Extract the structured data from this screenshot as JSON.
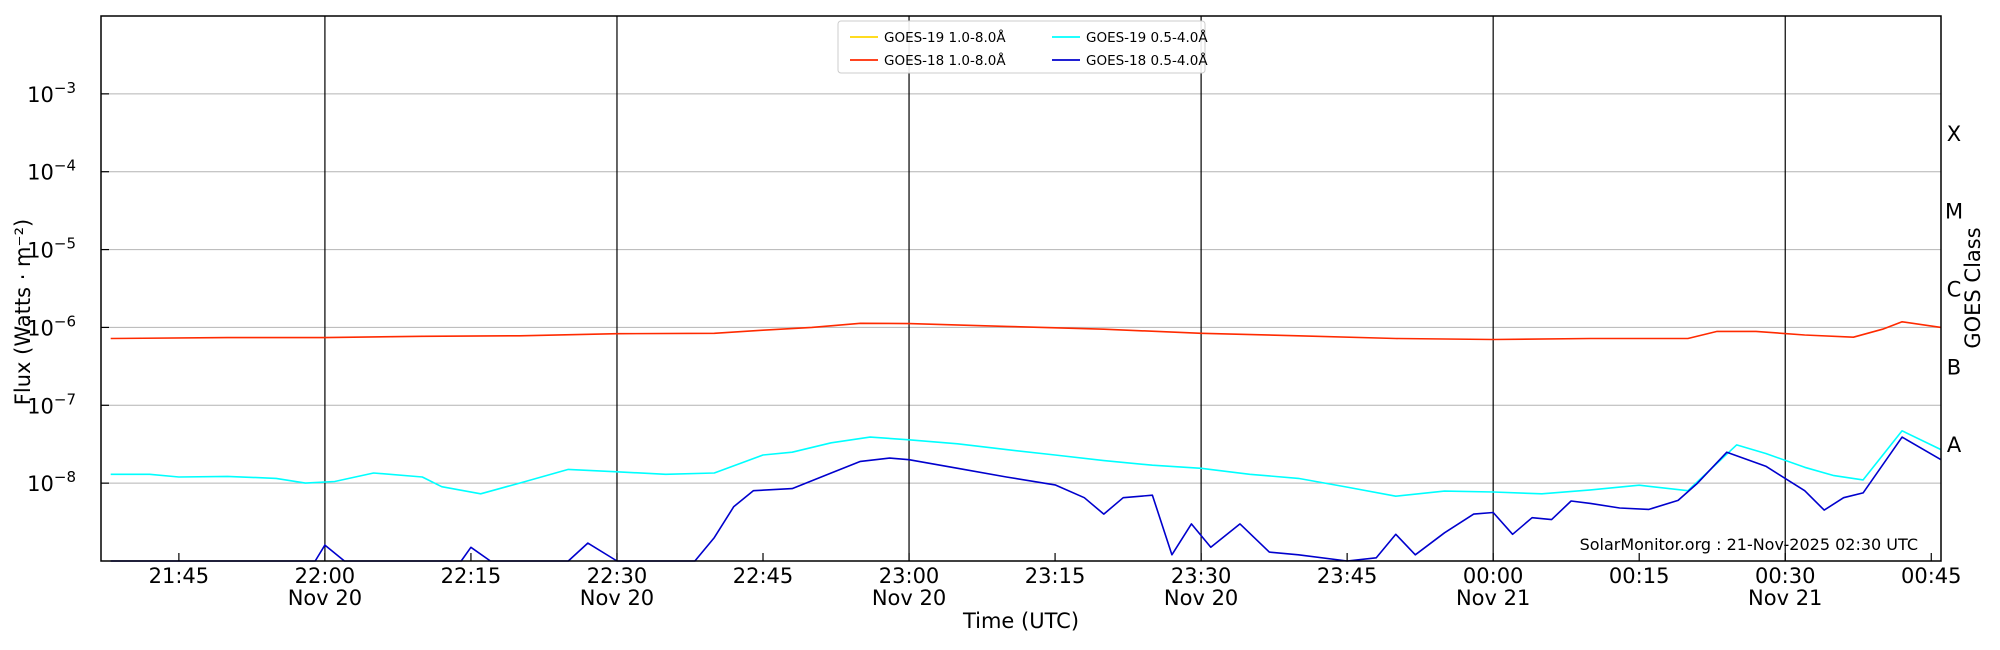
{
  "chart_data": {
    "type": "line",
    "xlabel": "Time (UTC)",
    "ylabel": "Flux (Watts · m⁻²)",
    "y2label": "GOES Class",
    "yscale": "log",
    "ylim": [
      "1.0e-9",
      "1.0e-2"
    ],
    "xlim": [
      "2025-11-20 21:37",
      "2025-11-21 00:46"
    ],
    "grid": "horizontal",
    "legend_position": "top-center",
    "credit": "SolarMonitor.org : 21-Nov-2025 02:30 UTC",
    "y_ticks": [
      {
        "value": "1e-3",
        "mant": "10",
        "exp": "−3"
      },
      {
        "value": "1e-4",
        "mant": "10",
        "exp": "−4"
      },
      {
        "value": "1e-5",
        "mant": "10",
        "exp": "−5"
      },
      {
        "value": "1e-6",
        "mant": "10",
        "exp": "−6"
      },
      {
        "value": "1e-7",
        "mant": "10",
        "exp": "−7"
      },
      {
        "value": "1e-8",
        "mant": "10",
        "exp": "−8"
      }
    ],
    "goes_classes": [
      {
        "label": "X",
        "flux": "1e-4"
      },
      {
        "label": "M",
        "flux": "1e-5"
      },
      {
        "label": "C",
        "flux": "1e-6"
      },
      {
        "label": "B",
        "flux": "1e-7"
      },
      {
        "label": "A",
        "flux": "1e-8"
      }
    ],
    "x_ticks": [
      {
        "time": "21:45",
        "date": ""
      },
      {
        "time": "22:00",
        "date": "Nov 20"
      },
      {
        "time": "22:15",
        "date": ""
      },
      {
        "time": "22:30",
        "date": "Nov 20"
      },
      {
        "time": "22:45",
        "date": ""
      },
      {
        "time": "23:00",
        "date": "Nov 20"
      },
      {
        "time": "23:15",
        "date": ""
      },
      {
        "time": "23:30",
        "date": "Nov 20"
      },
      {
        "time": "23:45",
        "date": ""
      },
      {
        "time": "00:00",
        "date": "Nov 21"
      },
      {
        "time": "00:15",
        "date": ""
      },
      {
        "time": "00:30",
        "date": "Nov 21"
      },
      {
        "time": "00:45",
        "date": ""
      }
    ],
    "vlines": [
      "22:00",
      "22:30",
      "23:00",
      "23:30",
      "00:00",
      "00:30"
    ],
    "series": [
      {
        "name": "GOES-19 1.0-8.0Å",
        "color": "#ffd700",
        "points": []
      },
      {
        "name": "GOES-19 0.5-4.0Å",
        "color": "#00ffff",
        "points": [
          [
            "21:38",
            "1.3e-8"
          ],
          [
            "21:42",
            "1.3e-8"
          ],
          [
            "21:45",
            "1.2e-8"
          ],
          [
            "21:50",
            "1.22e-8"
          ],
          [
            "21:55",
            "1.15e-8"
          ],
          [
            "21:58",
            "1.0e-8"
          ],
          [
            "22:01",
            "1.05e-8"
          ],
          [
            "22:05",
            "1.35e-8"
          ],
          [
            "22:10",
            "1.2e-8"
          ],
          [
            "22:12",
            "9.0e-9"
          ],
          [
            "22:16",
            "7.3e-9"
          ],
          [
            "22:20",
            "1.0e-8"
          ],
          [
            "22:25",
            "1.5e-8"
          ],
          [
            "22:30",
            "1.4e-8"
          ],
          [
            "22:35",
            "1.3e-8"
          ],
          [
            "22:40",
            "1.35e-8"
          ],
          [
            "22:45",
            "2.3e-8"
          ],
          [
            "22:48",
            "2.5e-8"
          ],
          [
            "22:52",
            "3.3e-8"
          ],
          [
            "22:56",
            "3.9e-8"
          ],
          [
            "23:00",
            "3.6e-8"
          ],
          [
            "23:05",
            "3.2e-8"
          ],
          [
            "23:10",
            "2.7e-8"
          ],
          [
            "23:15",
            "2.3e-8"
          ],
          [
            "23:20",
            "1.95e-8"
          ],
          [
            "23:25",
            "1.7e-8"
          ],
          [
            "23:30",
            "1.55e-8"
          ],
          [
            "23:35",
            "1.3e-8"
          ],
          [
            "23:40",
            "1.15e-8"
          ],
          [
            "23:45",
            "8.9e-9"
          ],
          [
            "23:50",
            "6.8e-9"
          ],
          [
            "23:55",
            "7.9e-9"
          ],
          [
            "00:00",
            "7.7e-9"
          ],
          [
            "00:05",
            "7.3e-9"
          ],
          [
            "00:10",
            "8.2e-9"
          ],
          [
            "00:15",
            "9.4e-9"
          ],
          [
            "00:20",
            "8.0e-9"
          ],
          [
            "00:25",
            "3.1e-8"
          ],
          [
            "00:28",
            "2.4e-8"
          ],
          [
            "00:32",
            "1.6e-8"
          ],
          [
            "00:35",
            "1.25e-8"
          ],
          [
            "00:38",
            "1.1e-8"
          ],
          [
            "00:42",
            "4.7e-8"
          ],
          [
            "00:46",
            "2.7e-8"
          ]
        ]
      },
      {
        "name": "GOES-18 1.0-8.0Å",
        "color": "#ff2a00",
        "points": [
          [
            "21:38",
            "7.2e-7"
          ],
          [
            "21:50",
            "7.4e-7"
          ],
          [
            "22:00",
            "7.4e-7"
          ],
          [
            "22:10",
            "7.7e-7"
          ],
          [
            "22:20",
            "7.8e-7"
          ],
          [
            "22:30",
            "8.3e-7"
          ],
          [
            "22:40",
            "8.4e-7"
          ],
          [
            "22:45",
            "9.2e-7"
          ],
          [
            "22:50",
            "1.0e-6"
          ],
          [
            "22:55",
            "1.13e-6"
          ],
          [
            "23:00",
            "1.12e-6"
          ],
          [
            "23:10",
            "1.03e-6"
          ],
          [
            "23:20",
            "9.5e-7"
          ],
          [
            "23:30",
            "8.4e-7"
          ],
          [
            "23:40",
            "7.8e-7"
          ],
          [
            "23:50",
            "7.2e-7"
          ],
          [
            "00:00",
            "7.0e-7"
          ],
          [
            "00:10",
            "7.2e-7"
          ],
          [
            "00:20",
            "7.2e-7"
          ],
          [
            "00:23",
            "8.9e-7"
          ],
          [
            "00:27",
            "8.9e-7"
          ],
          [
            "00:32",
            "8.0e-7"
          ],
          [
            "00:37",
            "7.5e-7"
          ],
          [
            "00:40",
            "9.5e-7"
          ],
          [
            "00:42",
            "1.18e-6"
          ],
          [
            "00:46",
            "1.0e-6"
          ]
        ]
      },
      {
        "name": "GOES-18 0.5-4.0Å",
        "color": "#0000cd",
        "points": [
          [
            "21:38",
            "1.0e-9"
          ],
          [
            "21:59",
            "1.0e-9"
          ],
          [
            "22:00",
            "1.6e-9"
          ],
          [
            "22:02",
            "1.0e-9"
          ],
          [
            "22:14",
            "1.0e-9"
          ],
          [
            "22:15",
            "1.5e-9"
          ],
          [
            "22:17",
            "1.0e-9"
          ],
          [
            "22:25",
            "1.0e-9"
          ],
          [
            "22:27",
            "1.7e-9"
          ],
          [
            "22:30",
            "1.0e-9"
          ],
          [
            "22:38",
            "1.0e-9"
          ],
          [
            "22:40",
            "2.0e-9"
          ],
          [
            "22:42",
            "5.0e-9"
          ],
          [
            "22:44",
            "8.0e-9"
          ],
          [
            "22:48",
            "8.5e-9"
          ],
          [
            "22:52",
            "1.35e-8"
          ],
          [
            "22:55",
            "1.9e-8"
          ],
          [
            "22:58",
            "2.1e-8"
          ],
          [
            "23:00",
            "2.0e-8"
          ],
          [
            "23:05",
            "1.55e-8"
          ],
          [
            "23:10",
            "1.2e-8"
          ],
          [
            "23:15",
            "9.5e-9"
          ],
          [
            "23:18",
            "6.5e-9"
          ],
          [
            "23:20",
            "4.0e-9"
          ],
          [
            "23:22",
            "6.5e-9"
          ],
          [
            "23:25",
            "7.0e-9"
          ],
          [
            "23:27",
            "1.2e-9"
          ],
          [
            "23:29",
            "3.0e-9"
          ],
          [
            "23:31",
            "1.5e-9"
          ],
          [
            "23:34",
            "3.0e-9"
          ],
          [
            "23:37",
            "1.3e-9"
          ],
          [
            "23:40",
            "1.2e-9"
          ],
          [
            "23:45",
            "1.0e-9"
          ],
          [
            "23:48",
            "1.1e-9"
          ],
          [
            "23:50",
            "2.2e-9"
          ],
          [
            "23:52",
            "1.2e-9"
          ],
          [
            "23:55",
            "2.3e-9"
          ],
          [
            "23:58",
            "4.0e-9"
          ],
          [
            "00:00",
            "4.2e-9"
          ],
          [
            "00:02",
            "2.2e-9"
          ],
          [
            "00:04",
            "3.6e-9"
          ],
          [
            "00:06",
            "3.4e-9"
          ],
          [
            "00:08",
            "5.9e-9"
          ],
          [
            "00:10",
            "5.5e-9"
          ],
          [
            "00:13",
            "4.8e-9"
          ],
          [
            "00:16",
            "4.6e-9"
          ],
          [
            "00:19",
            "6.0e-9"
          ],
          [
            "00:21",
            "1.0e-8"
          ],
          [
            "00:24",
            "2.5e-8"
          ],
          [
            "00:28",
            "1.65e-8"
          ],
          [
            "00:32",
            "8.0e-9"
          ],
          [
            "00:34",
            "4.5e-9"
          ],
          [
            "00:36",
            "6.5e-9"
          ],
          [
            "00:38",
            "7.5e-9"
          ],
          [
            "00:42",
            "3.9e-8"
          ],
          [
            "00:46",
            "2.0e-8"
          ]
        ]
      }
    ]
  }
}
